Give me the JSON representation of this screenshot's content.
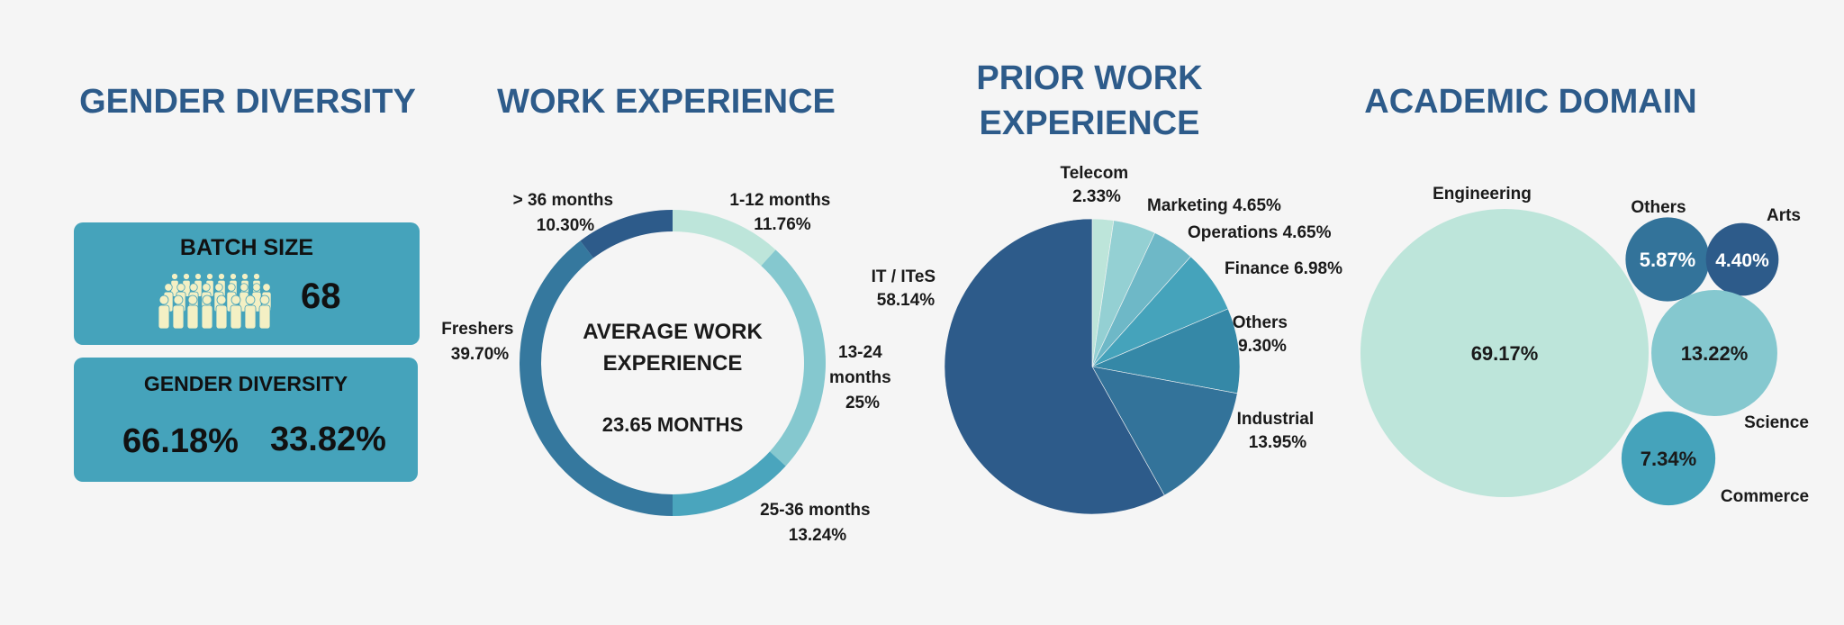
{
  "titles": {
    "gender": "GENDER DIVERSITY",
    "work": "WORK EXPERIENCE",
    "prior_line1": "PRIOR WORK",
    "prior_line2": "EXPERIENCE",
    "academic": "ACADEMIC DOMAIN"
  },
  "batch": {
    "label": "BATCH SIZE",
    "value": "68",
    "icon": "people-group-icon"
  },
  "gender_card": {
    "label": "GENDER DIVERSITY",
    "value1": "66.18%",
    "value2": "33.82%"
  },
  "work_center": {
    "line1": "AVERAGE WORK",
    "line2": "EXPERIENCE",
    "value": "23.65 MONTHS"
  },
  "colors": {
    "title": "#2d5b8a",
    "card": "#45a3bb",
    "icon": "#f4f0c4",
    "palette": [
      "#bde5da",
      "#94d0d3",
      "#6eb8c7",
      "#45a3bb",
      "#3588a7",
      "#33739a",
      "#2d5b8a"
    ]
  },
  "chart_data": [
    {
      "type": "pie",
      "variant": "donut",
      "title": "WORK EXPERIENCE",
      "categories": [
        "1-12 months",
        "13-24 months",
        "25-36 months",
        "Freshers",
        "> 36 months"
      ],
      "values": [
        11.76,
        25,
        13.24,
        39.7,
        10.3
      ],
      "labels": [
        "11.76%",
        "25%",
        "13.24%",
        "39.70%",
        "10.30%"
      ],
      "colors": [
        "#bde5da",
        "#85c8cf",
        "#4aa5bd",
        "#35789e",
        "#2d5b8a"
      ]
    },
    {
      "type": "pie",
      "title": "PRIOR WORK EXPERIENCE",
      "categories": [
        "Telecom",
        "Marketing",
        "Operations",
        "Finance",
        "Others",
        "Industrial",
        "IT / ITeS"
      ],
      "values": [
        2.33,
        4.65,
        4.65,
        6.98,
        9.3,
        13.95,
        58.14
      ],
      "labels": [
        "2.33%",
        "4.65%",
        "4.65%",
        "6.98%",
        "9.30%",
        "13.95%",
        "58.14%"
      ],
      "colors": [
        "#bde5da",
        "#94d0d3",
        "#6eb8c7",
        "#45a3bb",
        "#3588a7",
        "#33739a",
        "#2d5b8a"
      ]
    },
    {
      "type": "scatter",
      "variant": "bubble",
      "title": "ACADEMIC DOMAIN",
      "categories": [
        "Engineering",
        "Others",
        "Arts",
        "Science",
        "Commerce"
      ],
      "values": [
        69.17,
        5.87,
        4.4,
        13.22,
        7.34
      ],
      "labels": [
        "69.17%",
        "5.87%",
        "4.40%",
        "13.22%",
        "7.34%"
      ],
      "colors": [
        "#bde5da",
        "#33739a",
        "#2d5b8a",
        "#85c8cf",
        "#45a3bb"
      ]
    }
  ]
}
